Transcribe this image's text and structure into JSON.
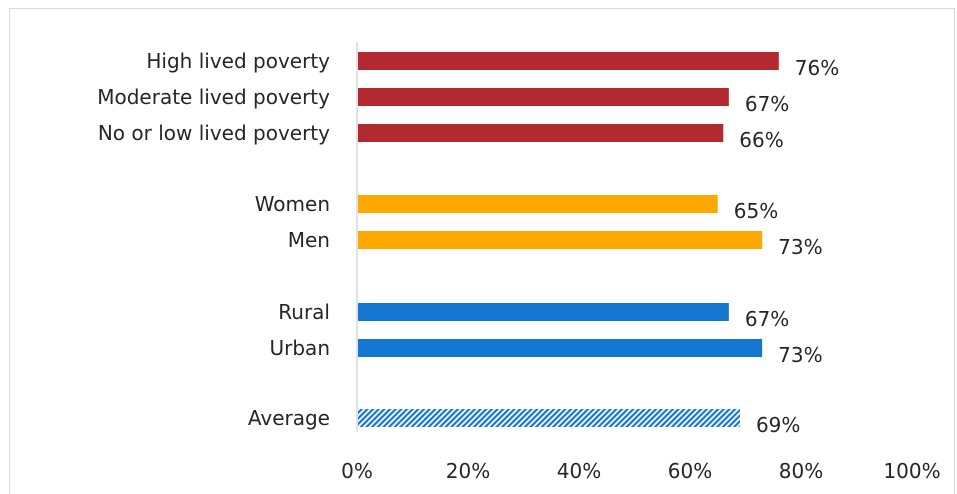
{
  "chart_data": {
    "type": "bar",
    "orientation": "horizontal",
    "categories": [
      "High lived poverty",
      "Moderate lived poverty",
      "No or low lived poverty",
      "Women",
      "Men",
      "Rural",
      "Urban",
      "Average"
    ],
    "values": [
      76,
      67,
      66,
      65,
      73,
      67,
      73,
      69
    ],
    "value_labels": [
      "76%",
      "67%",
      "66%",
      "65%",
      "73%",
      "67%",
      "73%",
      "69%"
    ],
    "groups": [
      "poverty",
      "poverty",
      "poverty",
      "gender",
      "gender",
      "location",
      "location",
      "average"
    ],
    "group_colors": {
      "poverty": "#b22a30",
      "gender": "#ffa800",
      "location": "#1677d2",
      "average": "#1677d2"
    },
    "hatched": [
      false,
      false,
      false,
      false,
      false,
      false,
      false,
      true
    ],
    "xlim": [
      0,
      100
    ],
    "x_ticks": [
      "0%",
      "20%",
      "40%",
      "60%",
      "80%",
      "100%"
    ],
    "grid": false,
    "legend": "none"
  }
}
